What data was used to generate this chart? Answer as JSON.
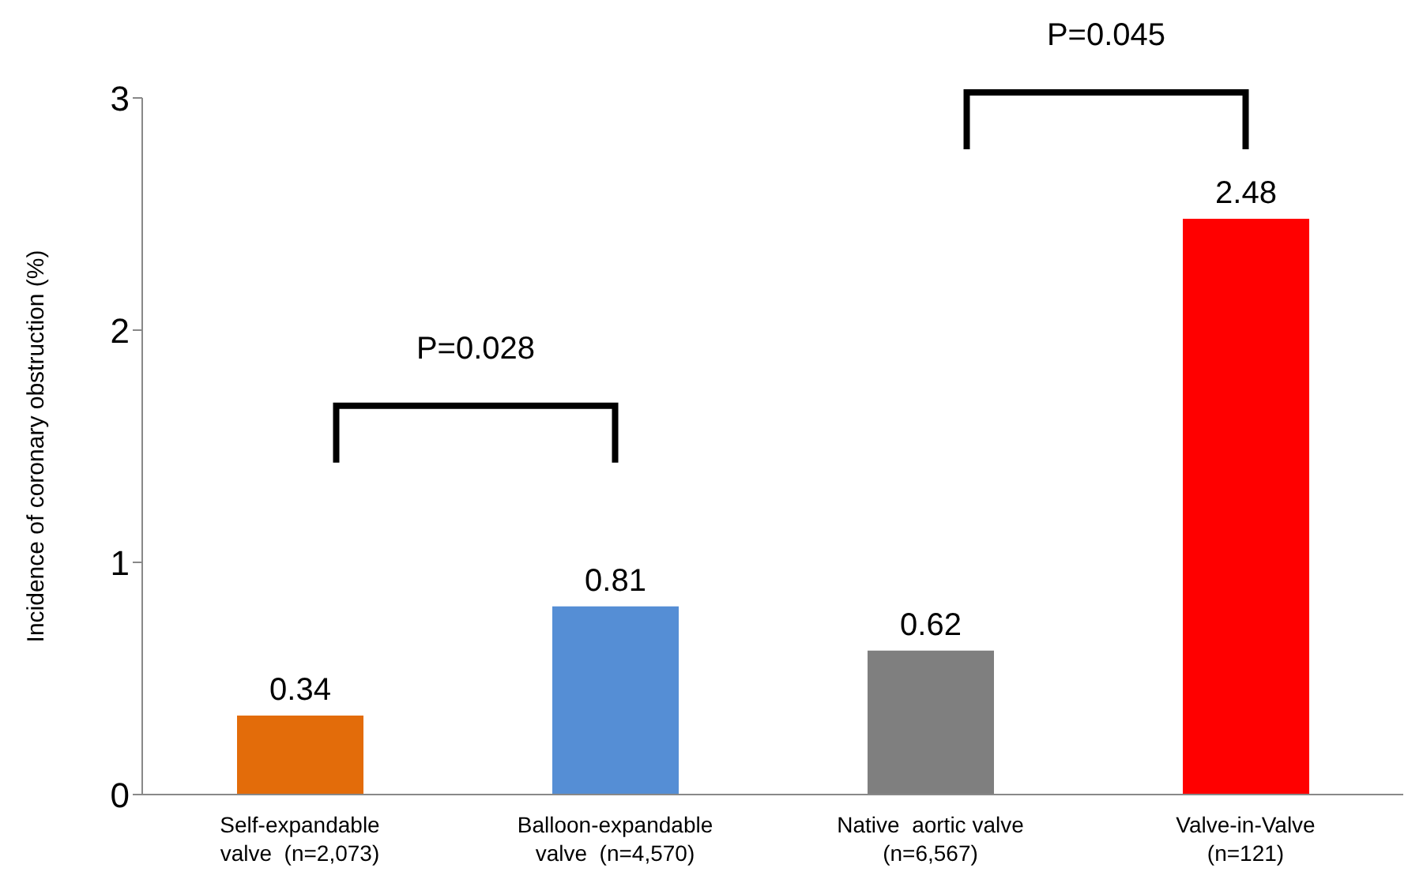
{
  "chart_data": {
    "type": "bar",
    "ylabel": "Incidence of coronary obstruction (%)",
    "categories": [
      "Self-expandable\nvalve  (n=2,073)",
      "Balloon-expandable\nvalve  (n=4,570)",
      "Native  aortic valve\n(n=6,567)",
      "Valve-in-Valve\n(n=121)"
    ],
    "values": [
      0.34,
      0.81,
      0.62,
      2.48
    ],
    "colors": [
      "#e36c0a",
      "#558ed5",
      "#7f7f7f",
      "#ff0000"
    ],
    "ylim": [
      0,
      3
    ],
    "yticks": [
      0,
      1,
      2,
      3
    ],
    "data_labels": true,
    "annotations": [
      "P=0.028",
      "P=0.045"
    ]
  }
}
